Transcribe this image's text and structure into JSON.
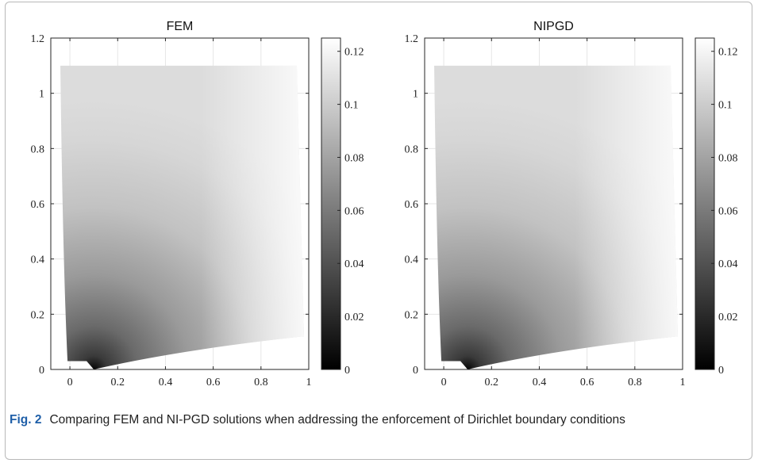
{
  "chart_data": [
    {
      "type": "heatmap",
      "title": "FEM",
      "xlabel": "",
      "ylabel": "",
      "xlim": [
        -0.08,
        1
      ],
      "ylim": [
        0,
        1.2
      ],
      "x_ticks": [
        "0",
        "0.2",
        "0.4",
        "0.6",
        "0.8",
        "1"
      ],
      "y_ticks": [
        "0",
        "0.2",
        "0.4",
        "0.6",
        "0.8",
        "1",
        "1.2"
      ],
      "grid": true,
      "colormap": "gray",
      "colorbar": {
        "range": [
          0,
          0.125
        ],
        "ticks": [
          "0",
          "0.02",
          "0.04",
          "0.06",
          "0.08",
          "0.1",
          "0.12"
        ]
      },
      "domain_outline": [
        [
          -0.04,
          1.1
        ],
        [
          0.95,
          1.1
        ],
        [
          0.98,
          0.12
        ],
        [
          0.1,
          0.0
        ],
        [
          0.07,
          0.03
        ],
        [
          -0.01,
          0.03
        ],
        [
          -0.04,
          1.1
        ]
      ],
      "min_point": [
        0.1,
        0.0
      ],
      "field_range": [
        0,
        0.125
      ]
    },
    {
      "type": "heatmap",
      "title": "NIPGD",
      "xlabel": "",
      "ylabel": "",
      "xlim": [
        -0.08,
        1
      ],
      "ylim": [
        0,
        1.2
      ],
      "x_ticks": [
        "0",
        "0.2",
        "0.4",
        "0.6",
        "0.8",
        "1"
      ],
      "y_ticks": [
        "0",
        "0.2",
        "0.4",
        "0.6",
        "0.8",
        "1",
        "1.2"
      ],
      "grid": true,
      "colormap": "gray",
      "colorbar": {
        "range": [
          0,
          0.125
        ],
        "ticks": [
          "0",
          "0.02",
          "0.04",
          "0.06",
          "0.08",
          "0.1",
          "0.12"
        ]
      },
      "domain_outline": [
        [
          -0.04,
          1.1
        ],
        [
          0.95,
          1.1
        ],
        [
          0.98,
          0.12
        ],
        [
          0.1,
          0.0
        ],
        [
          0.07,
          0.03
        ],
        [
          -0.01,
          0.03
        ],
        [
          -0.04,
          1.1
        ]
      ],
      "min_point": [
        0.1,
        0.0
      ],
      "field_range": [
        0,
        0.125
      ]
    }
  ],
  "caption": {
    "label": "Fig. 2",
    "text": "Comparing FEM and NI-PGD solutions when addressing the enforcement of Dirichlet boundary conditions"
  }
}
